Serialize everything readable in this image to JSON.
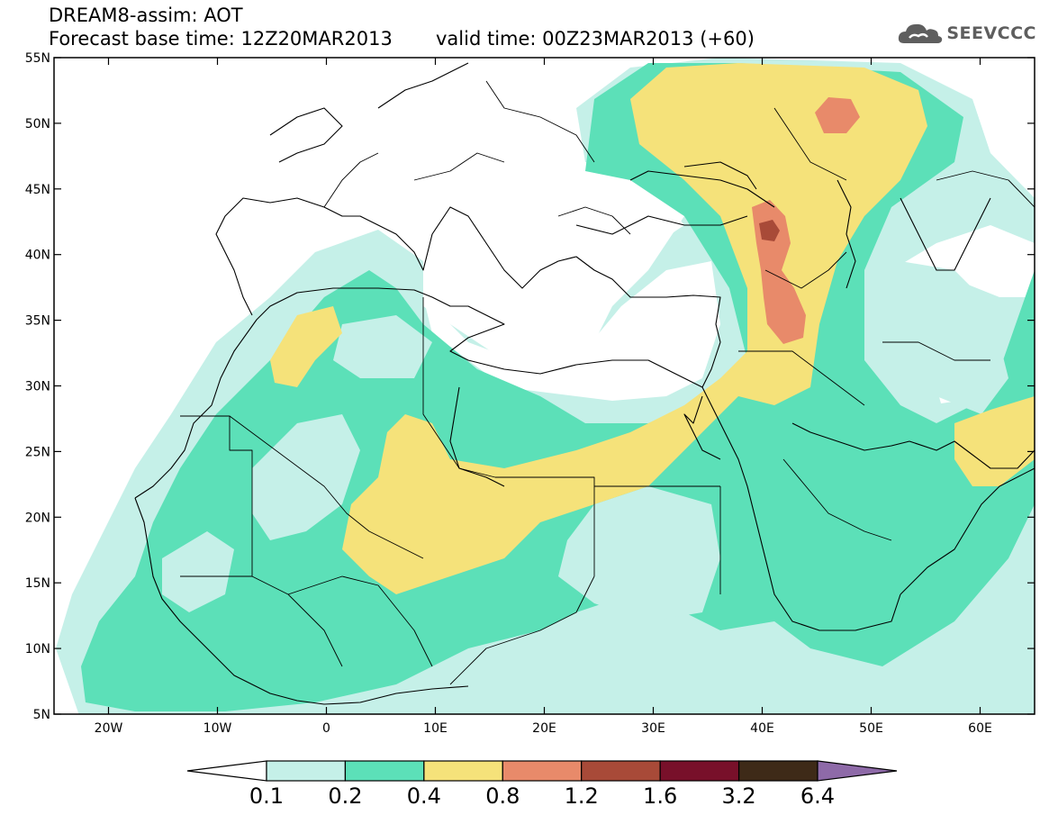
{
  "header": {
    "title": "DREAM8-assim: AOT",
    "base_time": "Forecast base time: 12Z20MAR2013",
    "valid_time": "valid time: 00Z23MAR2013 (+60)",
    "brand": "SEEVCCC",
    "brand_icon": "cloud-logo-icon"
  },
  "map": {
    "region": "North Africa, Mediterranean and Middle East",
    "lon_range": [
      -25,
      65
    ],
    "lat_range": [
      5,
      55
    ],
    "lat_ticks": [
      "55N",
      "50N",
      "45N",
      "40N",
      "35N",
      "30N",
      "25N",
      "20N",
      "15N",
      "10N",
      "5N"
    ],
    "lon_ticks": [
      "20W",
      "10W",
      "0",
      "10E",
      "20E",
      "30E",
      "40E",
      "50E",
      "60E"
    ]
  },
  "legend": {
    "levels": [
      "0.1",
      "0.2",
      "0.4",
      "0.8",
      "1.2",
      "1.6",
      "3.2",
      "6.4"
    ],
    "colors": [
      "#ffffff",
      "#c5f0e8",
      "#5ce0b8",
      "#f5e27a",
      "#e88a6a",
      "#a84a38",
      "#78102a",
      "#3e2a18",
      "#8e6aa8"
    ]
  },
  "colors": {
    "light_cyan": "#c5f0e8",
    "teal": "#5ce0b8",
    "yellow": "#f5e27a",
    "salmon": "#e88a6a",
    "brown_red": "#a84a38"
  }
}
